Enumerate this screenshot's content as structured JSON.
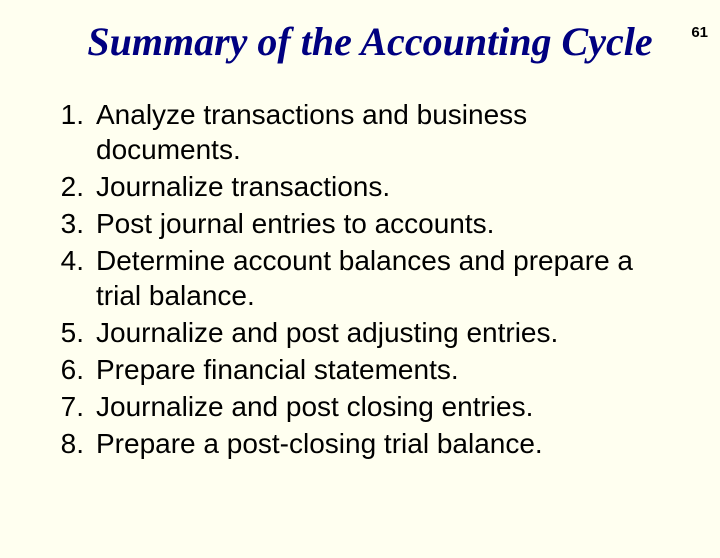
{
  "page_number": "61",
  "title": "Summary of the Accounting Cycle",
  "title_color": "#000080",
  "background_color": "#fffff0",
  "title_font": "Times New Roman, italic",
  "title_fontsize": 40,
  "list_font": "Arial",
  "list_fontsize": 28,
  "items": [
    "Analyze transactions and business documents.",
    "Journalize transactions.",
    "Post journal entries to accounts.",
    "Determine account balances and prepare a trial balance.",
    "Journalize and post adjusting entries.",
    "Prepare financial statements.",
    "Journalize and post closing entries.",
    "Prepare a post-closing trial balance."
  ]
}
